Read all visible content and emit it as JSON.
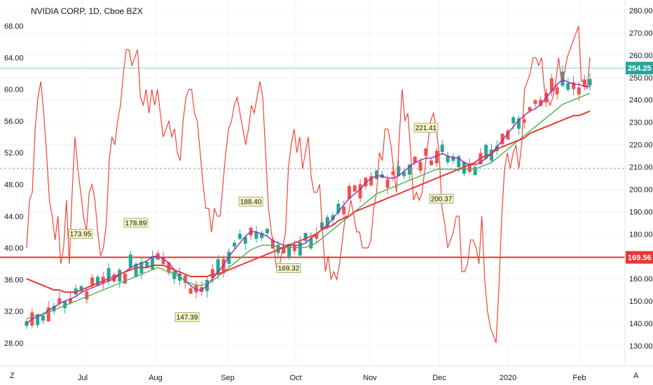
{
  "title": "NVIDIA CORP, 1D, Cboe BZX",
  "chart_data": {
    "type": "line",
    "left_axis": {
      "ticks": [
        "68.00",
        "64.00",
        "60.00",
        "56.00",
        "52.00",
        "48.00",
        "44.00",
        "40.00",
        "36.00",
        "32.00",
        "28.00"
      ],
      "ylim": [
        26,
        70
      ]
    },
    "right_axis": {
      "ticks": [
        "280.00",
        "270.00",
        "260.00",
        "250.00",
        "240.00",
        "230.00",
        "220.00",
        "210.00",
        "200.00",
        "190.00",
        "180.00",
        "170.00",
        "160.00",
        "150.00",
        "140.00",
        "130.00"
      ],
      "ylim": [
        123,
        284
      ]
    },
    "x_ticks": [
      "Jul",
      "Aug",
      "Sep",
      "Oct",
      "Nov",
      "Dec",
      "2020",
      "Feb"
    ],
    "price_label": "254.25",
    "level_label": "169.56",
    "level_value": 169.56,
    "last_price": 254.25,
    "annotations": [
      {
        "text": "173.95",
        "value": 173.95,
        "type": "high"
      },
      {
        "text": "178.89",
        "value": 178.89,
        "type": "high"
      },
      {
        "text": "147.39",
        "value": 147.39,
        "type": "low"
      },
      {
        "text": "188.40",
        "value": 188.4,
        "type": "high"
      },
      {
        "text": "169.32",
        "value": 169.32,
        "type": "low"
      },
      {
        "text": "221.41",
        "value": 221.41,
        "type": "high"
      },
      {
        "text": "200.37",
        "value": 200.37,
        "type": "low"
      }
    ],
    "series": [
      {
        "axis": "left",
        "type": "line",
        "values": [
          40,
          46,
          47,
          55,
          59,
          61,
          57,
          52,
          46,
          44,
          41,
          44,
          38,
          40,
          46,
          38,
          47,
          54,
          50,
          47,
          44,
          42,
          47,
          48,
          46,
          42,
          39,
          40,
          43,
          51,
          54,
          53,
          56,
          58,
          62,
          65,
          65,
          63,
          64,
          65,
          59,
          58,
          60,
          57,
          60,
          58,
          60,
          57,
          54,
          55,
          56,
          54,
          55,
          52,
          51,
          56,
          59,
          60,
          60,
          57,
          56,
          52,
          48,
          45,
          45,
          42,
          45,
          44,
          44,
          48,
          52,
          55,
          56,
          58,
          59,
          57,
          55,
          53,
          55,
          58,
          57,
          59,
          61,
          59,
          52,
          45,
          42,
          40,
          37,
          38,
          40,
          42,
          50,
          53,
          55,
          52,
          54,
          50,
          52,
          54,
          49,
          47,
          47,
          48,
          42,
          37,
          39,
          36,
          37,
          36,
          38,
          41,
          44,
          44,
          46,
          44,
          42,
          42,
          40,
          40,
          40,
          41,
          45,
          47,
          52,
          51,
          55,
          55,
          53,
          50,
          47,
          54,
          60,
          56,
          57,
          52,
          46,
          47,
          46,
          47,
          50,
          53,
          56,
          57,
          55,
          52,
          45,
          43,
          40,
          41,
          42,
          44,
          44,
          37,
          37,
          38,
          41,
          41,
          40,
          38,
          44,
          36,
          32,
          30,
          29,
          28,
          35,
          44,
          50,
          52,
          50,
          52,
          53,
          50,
          53,
          60,
          61,
          62,
          64,
          64,
          63,
          64,
          60,
          59,
          58,
          59,
          61,
          64,
          61,
          62,
          64,
          65,
          66,
          67,
          68,
          61,
          61,
          60,
          64
        ]
      },
      {
        "axis": "right",
        "type": "line",
        "color": "#9c27b0",
        "values": [
          140,
          142,
          143,
          144,
          146,
          147,
          149,
          150,
          151,
          152,
          154,
          155,
          156,
          157,
          158,
          159,
          160,
          162,
          163,
          165,
          166,
          167,
          168,
          170,
          170,
          169,
          167,
          164,
          161,
          159,
          157,
          155,
          155,
          157,
          160,
          163,
          166,
          170,
          173,
          176,
          179,
          181,
          181,
          180,
          179,
          177,
          176,
          175,
          175,
          175,
          175,
          176,
          178,
          180,
          182,
          184,
          187,
          190,
          193,
          196,
          198,
          200,
          203,
          205,
          206,
          206,
          205,
          205,
          206,
          208,
          210,
          212,
          213,
          214,
          214,
          215,
          216,
          215,
          214,
          214,
          212,
          211,
          211,
          212,
          214,
          216,
          219,
          222,
          225,
          228,
          231,
          233,
          235,
          236,
          238,
          241,
          244,
          247,
          249,
          248,
          247,
          247,
          246,
          246
        ]
      },
      {
        "axis": "right",
        "type": "line",
        "color": "#4caf50",
        "values": [
          142,
          143,
          144,
          144,
          145,
          146,
          147,
          148,
          149,
          150,
          151,
          152,
          153,
          154,
          155,
          156,
          157,
          158,
          159,
          160,
          161,
          162,
          163,
          164,
          165,
          164,
          163,
          162,
          161,
          159,
          158,
          157,
          157,
          158,
          159,
          161,
          163,
          165,
          167,
          169,
          171,
          173,
          174,
          175,
          175,
          175,
          174,
          174,
          174,
          174,
          174,
          174,
          175,
          176,
          178,
          180,
          182,
          184,
          186,
          188,
          190,
          192,
          194,
          196,
          198,
          199,
          200,
          201,
          202,
          203,
          204,
          205,
          206,
          207,
          208,
          209,
          209,
          209,
          209,
          209,
          209,
          209,
          209,
          210,
          211,
          212,
          214,
          216,
          218,
          220,
          222,
          224,
          226,
          228,
          230,
          232,
          234,
          236,
          238,
          239,
          240,
          241,
          242,
          243
        ]
      },
      {
        "axis": "right",
        "type": "line",
        "color": "#e53935",
        "values": [
          160,
          159,
          158,
          157,
          156,
          155,
          155,
          154,
          154,
          154,
          155,
          156,
          157,
          158,
          159,
          160,
          161,
          162,
          163,
          164,
          165,
          165,
          165,
          166,
          166,
          166,
          165,
          164,
          163,
          162,
          161,
          161,
          161,
          161,
          162,
          162,
          163,
          164,
          165,
          166,
          167,
          168,
          169,
          170,
          171,
          172,
          173,
          174,
          175,
          176,
          177,
          178,
          179,
          180,
          182,
          183,
          184,
          186,
          187,
          188,
          190,
          191,
          192,
          193,
          194,
          195,
          196,
          197,
          198,
          199,
          200,
          201,
          202,
          203,
          204,
          205,
          206,
          207,
          208,
          209,
          210,
          211,
          212,
          214,
          215,
          216,
          218,
          219,
          220,
          221,
          222,
          223,
          225,
          226,
          227,
          228,
          229,
          230,
          231,
          232,
          233,
          233,
          234,
          235
        ]
      }
    ]
  }
}
